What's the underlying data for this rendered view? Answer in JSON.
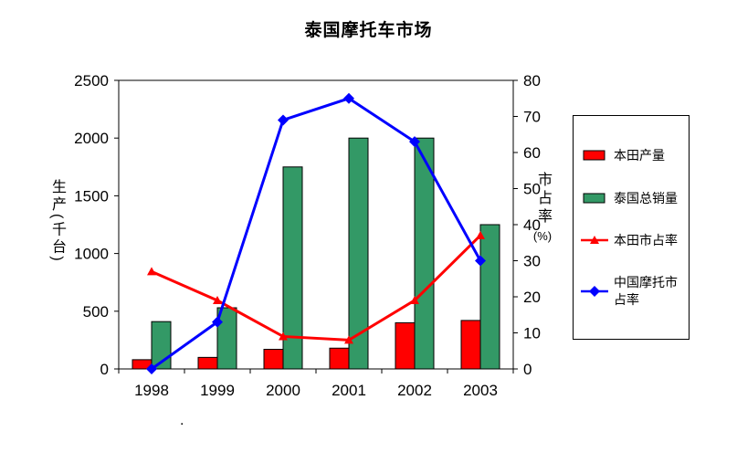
{
  "title": "泰国摩托车市场",
  "stray_dot": ".",
  "chart_data": {
    "type": "combo",
    "title": "泰国摩托车市场",
    "categories": [
      "1998",
      "1999",
      "2000",
      "2001",
      "2002",
      "2003"
    ],
    "left_axis": {
      "label": "生产(千台)",
      "min": 0,
      "max": 2500,
      "step": 500
    },
    "right_axis": {
      "label": "市占率",
      "unit": "(%)",
      "min": 0,
      "max": 80,
      "step": 10
    },
    "grid": false,
    "legend_position": "right",
    "series": [
      {
        "name": "本田产量",
        "type": "bar",
        "axis": "left",
        "color": "#ff0000",
        "values": [
          80,
          100,
          170,
          180,
          400,
          420
        ]
      },
      {
        "name": "泰国总销量",
        "type": "bar",
        "axis": "left",
        "color": "#339966",
        "values": [
          410,
          530,
          1750,
          2000,
          2000,
          1250
        ]
      },
      {
        "name": "本田市占率",
        "type": "line",
        "axis": "right",
        "color": "#ff0000",
        "marker": "triangle",
        "values": [
          27,
          19,
          9,
          8,
          19,
          37
        ]
      },
      {
        "name": "中国摩托市占率",
        "type": "line",
        "axis": "right",
        "color": "#0000ff",
        "marker": "diamond",
        "values": [
          0,
          13,
          69,
          75,
          63,
          30
        ]
      }
    ]
  }
}
